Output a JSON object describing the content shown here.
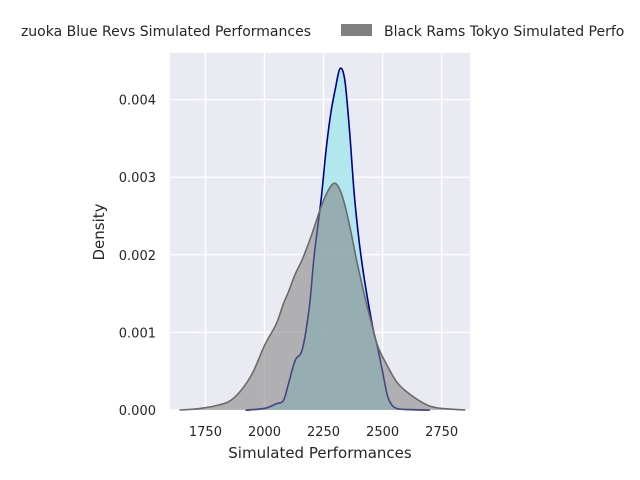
{
  "chart_data": {
    "type": "area",
    "title": "",
    "xlabel": "Simulated Performances",
    "ylabel": "Density",
    "xlim": [
      1600,
      2870
    ],
    "ylim": [
      0,
      0.0046
    ],
    "xticks": [
      1750,
      2000,
      2250,
      2500,
      2750
    ],
    "yticks": [
      0.0,
      0.001,
      0.002,
      0.003,
      0.004
    ],
    "ytick_labels": [
      "0.000",
      "0.001",
      "0.002",
      "0.003",
      "0.004"
    ],
    "grid": true,
    "legend_position": "top-center",
    "series": [
      {
        "name": "Shizuoka Blue Revs Simulated Performances",
        "legend_label": "zuoka Blue Revs Simulated Performances",
        "fill": "#a8e6ec",
        "stroke": "#00008b",
        "fill_opacity": 0.85,
        "x": [
          1920,
          2000,
          2050,
          2080,
          2100,
          2130,
          2160,
          2190,
          2210,
          2240,
          2260,
          2280,
          2300,
          2320,
          2340,
          2360,
          2380,
          2400,
          2420,
          2440,
          2460,
          2480,
          2500,
          2520,
          2540,
          2560,
          2580,
          2620,
          2700
        ],
        "values": [
          0,
          2e-05,
          8e-05,
          0.00012,
          0.00032,
          0.00064,
          0.00078,
          0.00133,
          0.00198,
          0.00272,
          0.00333,
          0.00381,
          0.00414,
          0.0044,
          0.00425,
          0.0036,
          0.00278,
          0.00219,
          0.00174,
          0.00137,
          0.00104,
          0.00079,
          0.00049,
          0.00019,
          6e-05,
          2e-05,
          1e-05,
          5e-06,
          0
        ]
      },
      {
        "name": "Black Rams Tokyo Simulated Performances",
        "legend_label": "Black Rams Tokyo Simulated Perfo",
        "fill": "#808080",
        "stroke": "#6b6b6b",
        "fill_opacity": 0.55,
        "x": [
          1640,
          1700,
          1750,
          1800,
          1850,
          1900,
          1950,
          2000,
          2050,
          2080,
          2100,
          2130,
          2160,
          2200,
          2240,
          2270,
          2300,
          2330,
          2360,
          2390,
          2420,
          2450,
          2480,
          2520,
          2560,
          2600,
          2650,
          2700,
          2750,
          2850
        ],
        "values": [
          0,
          1e-05,
          3e-05,
          6e-05,
          0.00011,
          0.00025,
          0.00048,
          0.00083,
          0.00111,
          0.00137,
          0.00151,
          0.00175,
          0.00194,
          0.00226,
          0.00262,
          0.00283,
          0.00292,
          0.00275,
          0.00238,
          0.00193,
          0.00152,
          0.00115,
          0.00082,
          0.00057,
          0.00036,
          0.00024,
          0.00013,
          5e-05,
          2e-05,
          0
        ]
      }
    ]
  }
}
